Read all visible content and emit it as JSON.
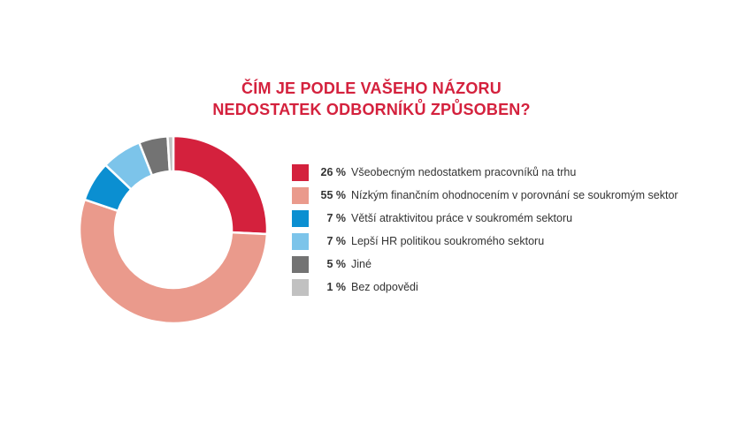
{
  "title": {
    "line1": "ČÍM JE PODLE VAŠEHO NÁZORU",
    "line2": "NEDOSTATEK ODBORNÍKŮ ZPŮSOBEN?"
  },
  "colors": {
    "title": "#d4213d"
  },
  "chart_data": {
    "type": "pie",
    "variant": "donut",
    "title": "ČÍM JE PODLE VAŠEHO NÁZORU NEDOSTATEK ODBORNÍKŮ ZPŮSOBEN?",
    "unit": "%",
    "legend_position": "right",
    "slices": [
      {
        "label": "Všeobecným nedostatkem pracovníků na trhu",
        "value": 26,
        "display": "26 %",
        "color": "#d4213d"
      },
      {
        "label": "Nízkým finančním ohodnocením v porovnání se soukromým sektor",
        "value": 55,
        "display": "55 %",
        "color": "#ea9a8c"
      },
      {
        "label": "Větší atraktivitou práce v soukromém sektoru",
        "value": 7,
        "display": "7 %",
        "color": "#0b8fd1"
      },
      {
        "label": "Lepší HR politikou soukromého sektoru",
        "value": 7,
        "display": "7 %",
        "color": "#7cc4ea"
      },
      {
        "label": "Jiné",
        "value": 5,
        "display": "5 %",
        "color": "#737373"
      },
      {
        "label": "Bez odpovědi",
        "value": 1,
        "display": "1 %",
        "color": "#c1c1c1"
      }
    ]
  }
}
